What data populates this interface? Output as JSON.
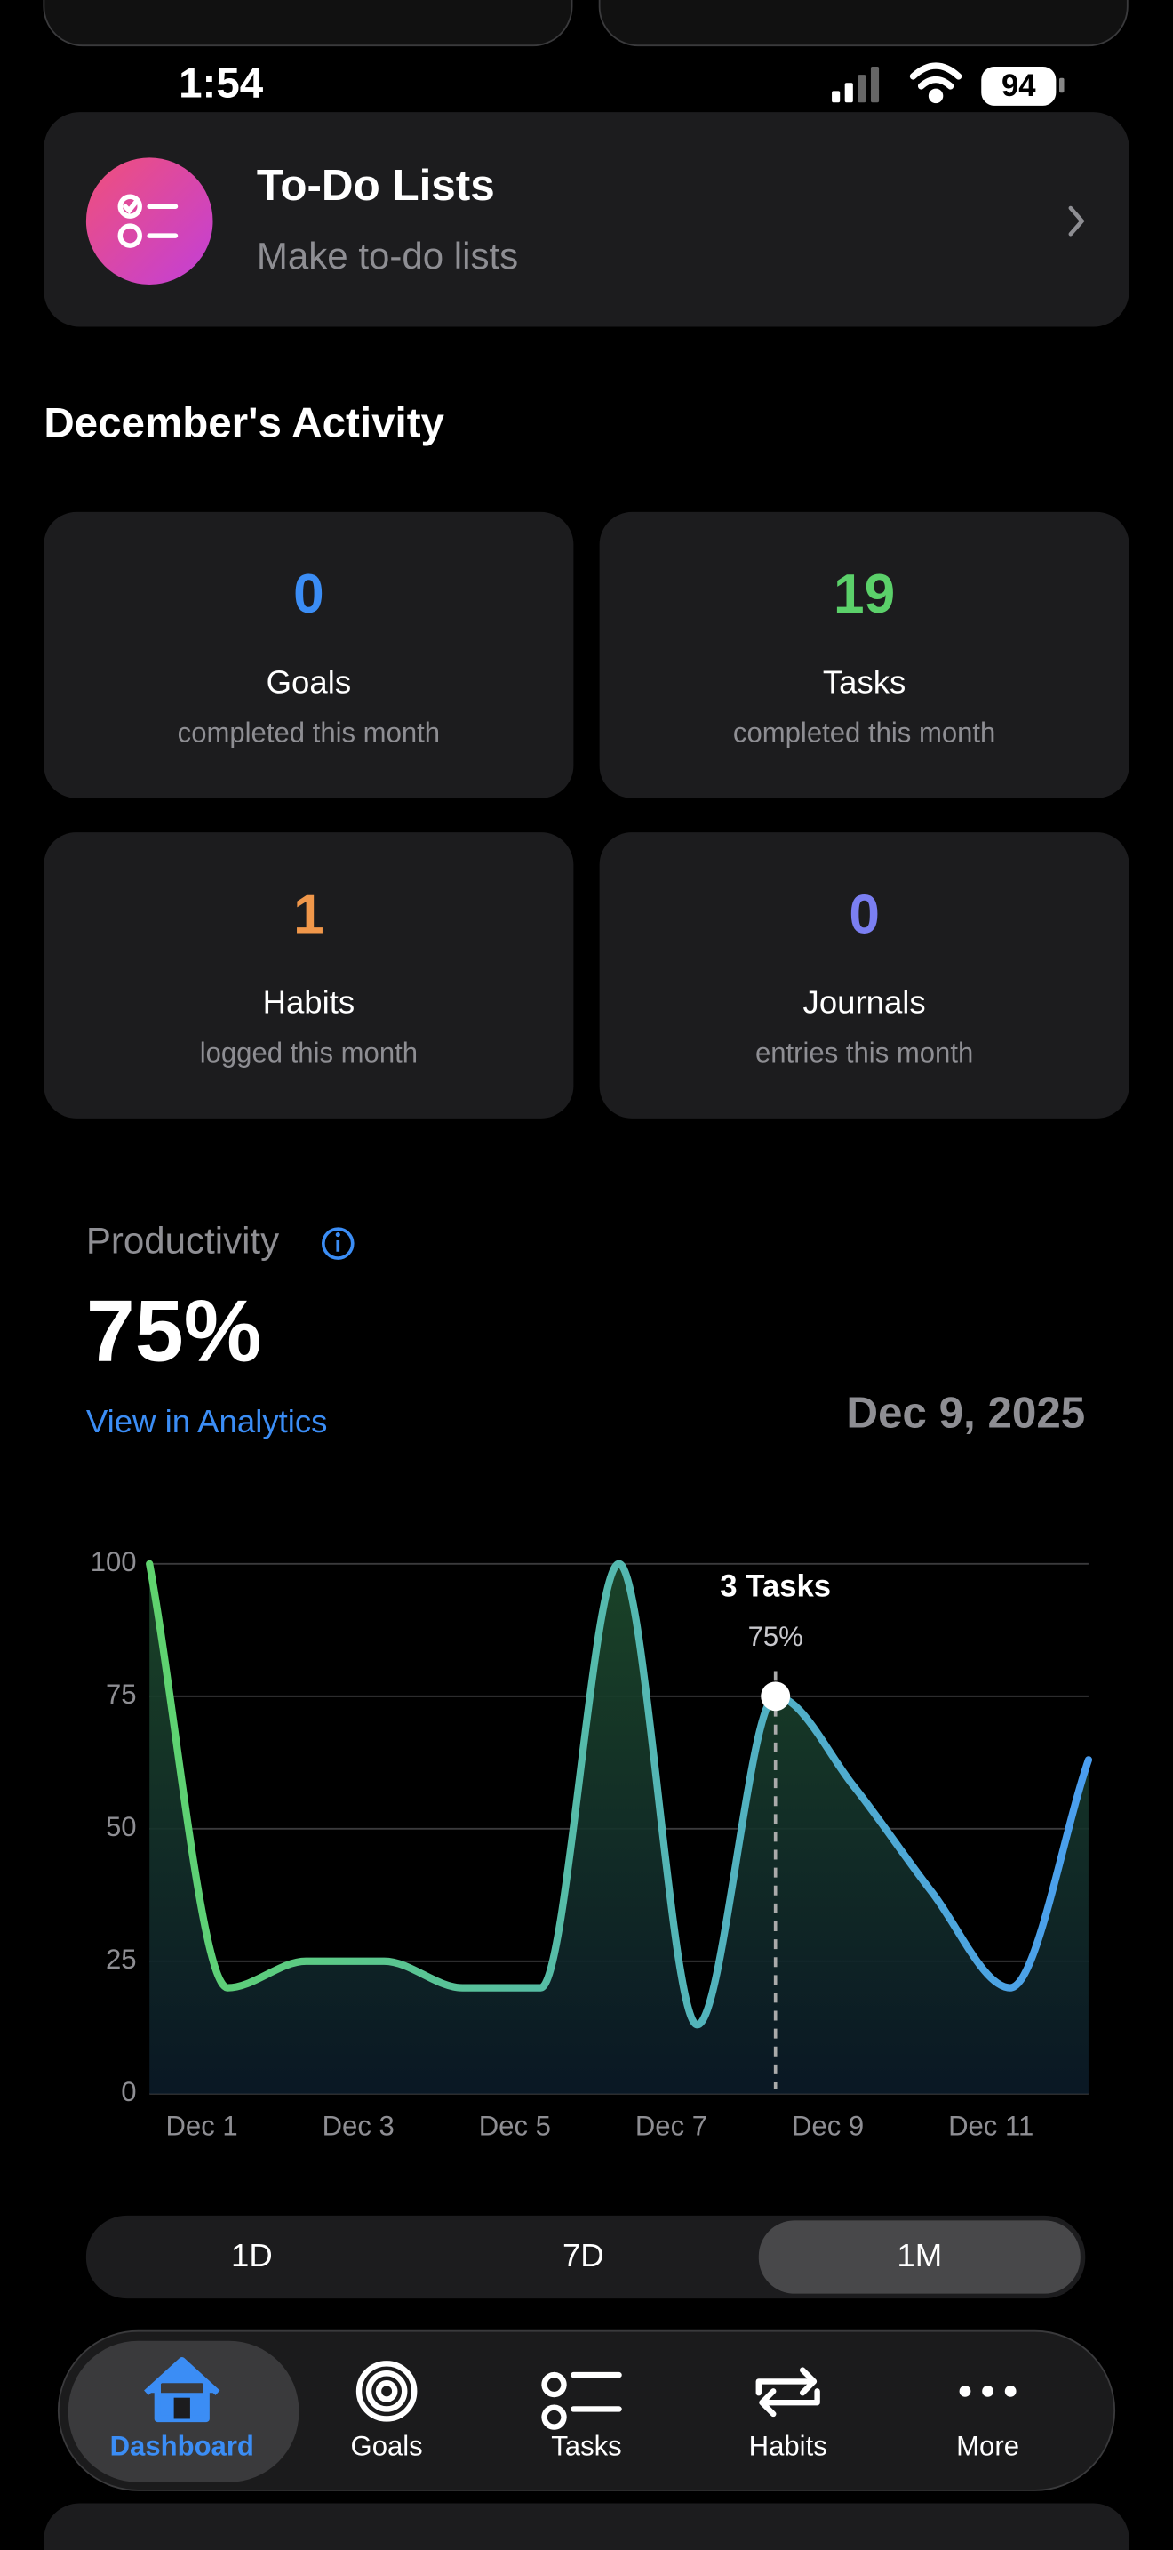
{
  "status_bar": {
    "time": "1:54",
    "battery": "94"
  },
  "todo_card": {
    "title": "To-Do Lists",
    "subtitle": "Make to-do lists"
  },
  "activity": {
    "title": "December's Activity",
    "cards": [
      {
        "value": 0,
        "label": "Goals",
        "sublabel": "completed this month",
        "color": "#3b8df5"
      },
      {
        "value": 19,
        "label": "Tasks",
        "sublabel": "completed this month",
        "color": "#5bd06a"
      },
      {
        "value": 1,
        "label": "Habits",
        "sublabel": "logged this month",
        "color": "#f0974a"
      },
      {
        "value": 0,
        "label": "Journals",
        "sublabel": "entries this month",
        "color": "#7b7ff2"
      }
    ]
  },
  "productivity": {
    "title": "Productivity",
    "value": "75%",
    "link": "View in Analytics",
    "date": "Dec 9, 2025"
  },
  "chart_data": {
    "type": "line",
    "categories": [
      "Dec 1",
      null,
      "Dec 3",
      null,
      "Dec 5",
      null,
      "Dec 7",
      null,
      "Dec 9",
      null,
      "Dec 11",
      null,
      null
    ],
    "series": [
      {
        "name": "Productivity",
        "colors": [
          "#5fd36e",
          "#4a9ef0"
        ],
        "values": [
          100,
          20,
          25,
          25,
          20,
          20,
          100,
          13,
          75,
          58,
          38,
          20,
          63
        ]
      }
    ],
    "ylim": [
      0,
      100
    ],
    "yticks": [
      0,
      25,
      50,
      75,
      100
    ],
    "grid": true,
    "tooltip": {
      "index": 8,
      "title": "3 Tasks",
      "value_label": "75%"
    }
  },
  "range_tabs": {
    "options": [
      "1D",
      "7D",
      "1M"
    ],
    "selected": 2
  },
  "tab_bar": {
    "items": [
      "Dashboard",
      "Goals",
      "Tasks",
      "Habits",
      "More"
    ],
    "selected": 0
  }
}
